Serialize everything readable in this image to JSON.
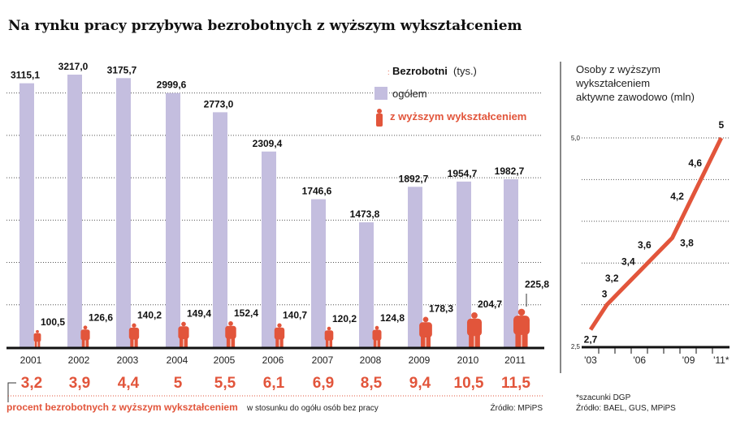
{
  "title": "Na rynku pracy przybywa bezrobotnych z wyższym wykształceniem",
  "colors": {
    "bar": "#c4bedf",
    "accent": "#e2553b",
    "text": "#111111"
  },
  "chart_data": [
    {
      "type": "bar",
      "legend": {
        "heading": "Bezrobotni",
        "unit": "(tys.)",
        "placement": "top-right"
      },
      "categories": [
        "2001",
        "2002",
        "2003",
        "2004",
        "2005",
        "2006",
        "2007",
        "2008",
        "2009",
        "2010",
        "2011"
      ],
      "series": [
        {
          "name": "ogółem",
          "values": [
            3115.1,
            3217.0,
            3175.7,
            2999.6,
            2773.0,
            2309.4,
            1746.6,
            1473.8,
            1892.7,
            1954.7,
            1982.7
          ],
          "labels": [
            "3115,1",
            "3217,0",
            "3175,7",
            "2999,6",
            "2773,0",
            "2309,4",
            "1746,6",
            "1473,8",
            "1892,7",
            "1954,7",
            "1982,7"
          ]
        },
        {
          "name": "z wyższym wykształceniem",
          "values": [
            100.5,
            126.6,
            140.2,
            149.4,
            152.4,
            140.7,
            120.2,
            124.8,
            178.3,
            204.7,
            225.8
          ],
          "labels": [
            "100,5",
            "126,6",
            "140,2",
            "149,4",
            "152,4",
            "140,7",
            "120,2",
            "124,8",
            "178,3",
            "204,7",
            "225,8"
          ]
        }
      ],
      "ylim": [
        0,
        3300
      ],
      "grid": true,
      "percent_row": {
        "values": [
          "3,2",
          "3,9",
          "4,4",
          "5",
          "5,5",
          "6,1",
          "6,9",
          "8,5",
          "9,4",
          "10,5",
          "11,5"
        ],
        "caption_bold": "procent bezrobotnych z wyższym wykształceniem",
        "caption_rest": "w stosunku do ogółu osób bez pracy"
      },
      "source": "Źródło: MPiPS"
    },
    {
      "type": "line",
      "title": "Osoby z wyższym wykształceniem aktywne zawodowo (mln)",
      "title_lines": [
        "Osoby z wyższym",
        "wykształceniem",
        "aktywne zawodowo (mln)"
      ],
      "x": [
        2003,
        2004,
        2005,
        2006,
        2007,
        2008,
        2009,
        2010,
        2011
      ],
      "y": [
        2.7,
        3,
        3.2,
        3.4,
        3.6,
        3.8,
        4.2,
        4.6,
        5
      ],
      "point_labels": [
        "2,7",
        "3",
        "3,2",
        "3,4",
        "3,6",
        "3,8",
        "4,2",
        "4,6",
        "5"
      ],
      "ylim": [
        2.5,
        5.0
      ],
      "ytick_labels": [
        "2,5",
        "5,0"
      ],
      "xtick_labels": [
        "'03",
        "'06",
        "'09",
        "'11*"
      ],
      "grid": true,
      "footnote": "*szacunki DGP",
      "source": "Źródło: BAEL, GUS, MPiPS"
    }
  ]
}
